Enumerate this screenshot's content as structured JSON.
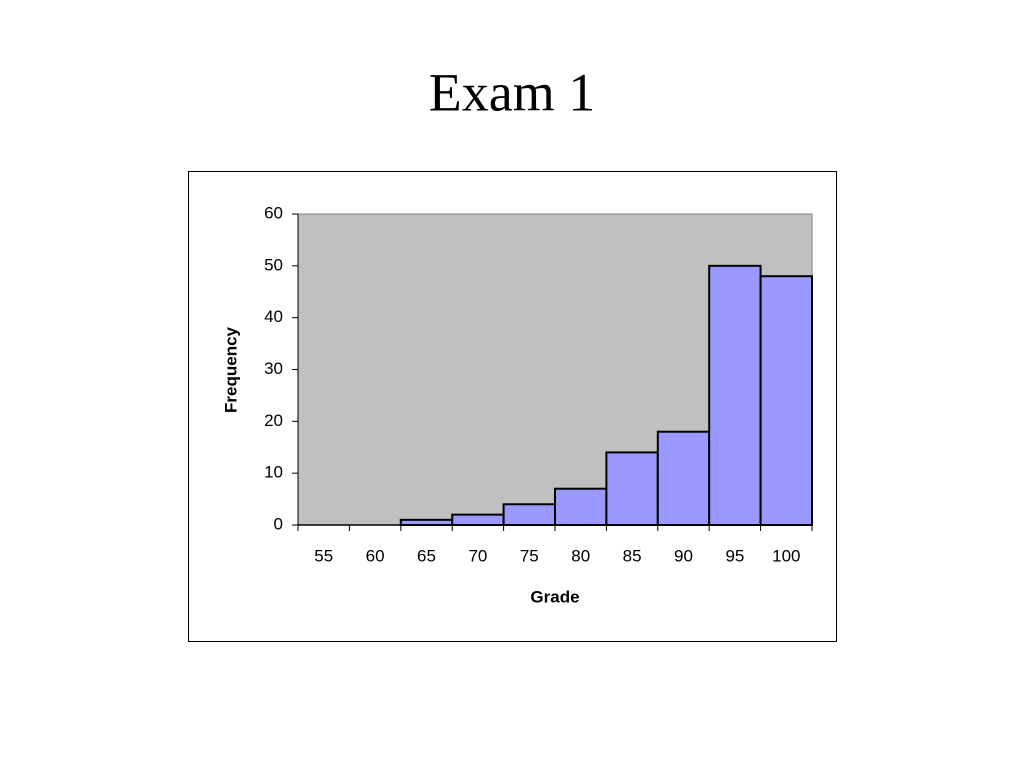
{
  "chart_data": {
    "type": "bar",
    "title": "Exam 1",
    "x_label": "Grade",
    "y_label": "Frequency",
    "categories": [
      "55",
      "60",
      "65",
      "70",
      "75",
      "80",
      "85",
      "90",
      "95",
      "100"
    ],
    "values": [
      0,
      0,
      1,
      2,
      4,
      7,
      14,
      18,
      50,
      48
    ],
    "color": "#9999ff",
    "plot_background": "#c0c0c0",
    "ylim": [
      0,
      60
    ],
    "yticks": [
      0,
      10,
      20,
      30,
      40,
      50,
      60
    ],
    "grid": false
  }
}
